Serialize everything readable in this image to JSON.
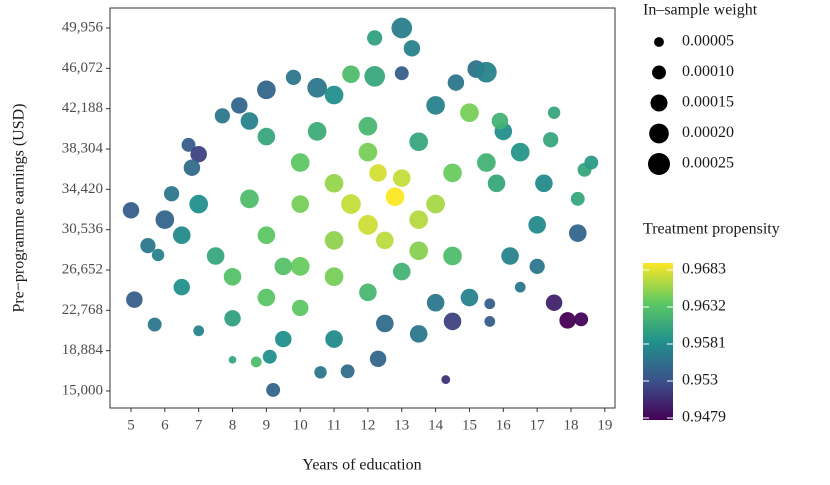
{
  "chart_data": {
    "type": "scatter",
    "xlabel": "Years of education",
    "ylabel": "Pre−programme earnings (USD)",
    "xlim": [
      4.38,
      19.3
    ],
    "ylim": [
      13363,
      51882
    ],
    "xticks": [
      5,
      6,
      7,
      8,
      9,
      10,
      11,
      12,
      13,
      14,
      15,
      16,
      17,
      18,
      19
    ],
    "yticks": [
      {
        "value": 15000,
        "label": "15,000"
      },
      {
        "value": 18884,
        "label": "18,884"
      },
      {
        "value": 22768,
        "label": "22,768"
      },
      {
        "value": 26652,
        "label": "26,652"
      },
      {
        "value": 30536,
        "label": "30,536"
      },
      {
        "value": 34420,
        "label": "34,420"
      },
      {
        "value": 38304,
        "label": "38,304"
      },
      {
        "value": 42188,
        "label": "42,188"
      },
      {
        "value": 46072,
        "label": "46,072"
      },
      {
        "value": 49956,
        "label": "49,956"
      }
    ],
    "size_legend_title": "In–sample weight",
    "size_legend": [
      5e-05,
      {
        "value": 0.0001,
        "label": "0.00010"
      },
      0.00015,
      {
        "value": 0.0002,
        "label": "0.00020"
      },
      0.00025
    ],
    "color_legend_title": "Treatment propensity",
    "colormap": "viridis",
    "clim": [
      0.9479,
      0.9683
    ],
    "cticks": [
      0.9683,
      0.9632,
      0.9581,
      0.953,
      0.9479
    ],
    "x": [
      13,
      12.2,
      13.3,
      15.2,
      15.5,
      11.5,
      12.2,
      9.8,
      9,
      10.5,
      13,
      8.2,
      7.7,
      6.7,
      7,
      5,
      5.5,
      5.8,
      5.1,
      5.7,
      7,
      8,
      8.7,
      9.1,
      9.2,
      10.6,
      11.4,
      12.3,
      14.3,
      14.5,
      15.6,
      15.6,
      16.5,
      17,
      17.5,
      17.9,
      18.3,
      18.2,
      18.2,
      18.4,
      18.6,
      17.4,
      17.5,
      16,
      15.9,
      15,
      14.6,
      6.2,
      6,
      6.8,
      6.5,
      7,
      8.5,
      11,
      14,
      16.5,
      17.2,
      17,
      16.2,
      15,
      13.5,
      11,
      9.5,
      8,
      6.5,
      7.5,
      12.5,
      14,
      9,
      10.5,
      12,
      13.5,
      15.8,
      15.5,
      14.5,
      13,
      12,
      10,
      9,
      8,
      9,
      10,
      8.5,
      9.5,
      11,
      13.5,
      14.5,
      12,
      10,
      11,
      10,
      13,
      14,
      11.5,
      12.5,
      12,
      13.5,
      11,
      12.3,
      12.8
    ],
    "y": [
      49956,
      49000,
      48000,
      46000,
      45700,
      45500,
      45300,
      45200,
      44000,
      44200,
      45600,
      42500,
      41500,
      38700,
      37800,
      32400,
      29000,
      28100,
      23800,
      21400,
      20800,
      18000,
      17800,
      18300,
      15100,
      16800,
      16900,
      18100,
      16100,
      21700,
      21700,
      23400,
      25000,
      27000,
      23500,
      21800,
      21900,
      30200,
      33500,
      36300,
      37000,
      39200,
      41800,
      40000,
      41000,
      41800,
      44700,
      34000,
      31500,
      36500,
      25000,
      33000,
      41000,
      43500,
      42500,
      38000,
      35000,
      31000,
      28000,
      24000,
      20500,
      20000,
      20000,
      22000,
      30000,
      28000,
      21500,
      23500,
      39500,
      40000,
      40500,
      39000,
      35000,
      37000,
      36000,
      26500,
      24500,
      23000,
      24000,
      26000,
      30000,
      27000,
      33500,
      27000,
      26000,
      28500,
      28000,
      38000,
      37000,
      29500,
      33000,
      35500,
      33000,
      33000,
      29500,
      31000,
      31500,
      35000,
      36000,
      33700
    ],
    "weights": [
      0.00022,
      0.00012,
      0.00014,
      0.00016,
      0.00022,
      0.00016,
      0.00022,
      0.00012,
      0.00018,
      0.0002,
      0.0001,
      0.00014,
      0.00012,
      0.0001,
      0.00014,
      0.00014,
      0.00012,
      8e-05,
      0.00014,
      0.0001,
      6e-05,
      3e-05,
      6e-05,
      0.0001,
      0.0001,
      8e-05,
      0.0001,
      0.00014,
      4e-05,
      0.00016,
      6e-05,
      6e-05,
      6e-05,
      0.00012,
      0.00014,
      0.00014,
      0.0001,
      0.00016,
      0.0001,
      0.0001,
      0.0001,
      0.00012,
      8e-05,
      0.00016,
      0.00014,
      0.00018,
      0.00014,
      0.00012,
      0.00018,
      0.00014,
      0.00014,
      0.00018,
      0.00016,
      0.00018,
      0.00018,
      0.00018,
      0.00016,
      0.00016,
      0.00016,
      0.00016,
      0.00016,
      0.00016,
      0.00014,
      0.00014,
      0.00016,
      0.00016,
      0.00016,
      0.00016,
      0.00016,
      0.00018,
      0.00018,
      0.00018,
      0.00016,
      0.00018,
      0.00018,
      0.00016,
      0.00016,
      0.00014,
      0.00016,
      0.00016,
      0.00016,
      0.00018,
      0.00018,
      0.00016,
      0.00018,
      0.00018,
      0.00018,
      0.00018,
      0.00018,
      0.00018,
      0.00016,
      0.00016,
      0.00018,
      0.0002,
      0.00016,
      0.0002,
      0.00018,
      0.00018,
      0.00016,
      0.00018
    ],
    "propensity": [
      0.9565,
      0.9595,
      0.957,
      0.9555,
      0.957,
      0.962,
      0.96,
      0.956,
      0.9545,
      0.956,
      0.954,
      0.9545,
      0.956,
      0.954,
      0.952,
      0.954,
      0.956,
      0.957,
      0.954,
      0.956,
      0.957,
      0.96,
      0.962,
      0.958,
      0.9545,
      0.956,
      0.955,
      0.9545,
      0.951,
      0.952,
      0.954,
      0.954,
      0.956,
      0.956,
      0.95,
      0.9479,
      0.9482,
      0.9545,
      0.96,
      0.96,
      0.959,
      0.96,
      0.96,
      0.958,
      0.961,
      0.964,
      0.956,
      0.956,
      0.9545,
      0.955,
      0.958,
      0.958,
      0.957,
      0.958,
      0.957,
      0.9585,
      0.9575,
      0.9575,
      0.957,
      0.957,
      0.956,
      0.9575,
      0.958,
      0.9595,
      0.9575,
      0.96,
      0.955,
      0.956,
      0.96,
      0.9605,
      0.9615,
      0.96,
      0.96,
      0.961,
      0.9635,
      0.961,
      0.9615,
      0.963,
      0.9628,
      0.9625,
      0.963,
      0.9635,
      0.962,
      0.9625,
      0.964,
      0.9645,
      0.962,
      0.964,
      0.963,
      0.9648,
      0.964,
      0.9665,
      0.9655,
      0.9665,
      0.9662,
      0.9668,
      0.966,
      0.965,
      0.967,
      0.9683
    ]
  }
}
